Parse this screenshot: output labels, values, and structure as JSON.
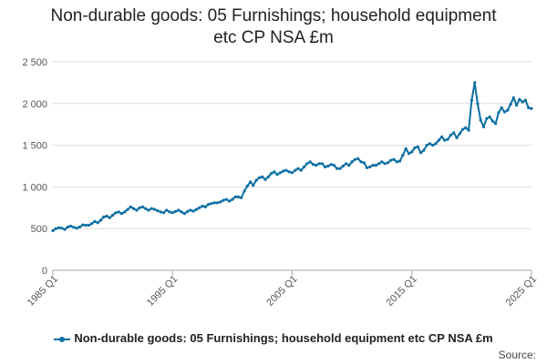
{
  "title": {
    "line1": "Non-durable goods: 05 Furnishings; household equipment",
    "line2": "etc CP NSA £m"
  },
  "legend": {
    "label": "Non-durable goods: 05 Furnishings; household equipment etc CP NSA £m"
  },
  "source": "Source:",
  "colors": {
    "series": "#0b6fa4",
    "grid": "#dddddd",
    "axis": "#aaaaaa"
  },
  "chart_data": {
    "type": "line",
    "title": "Non-durable goods: 05 Furnishings; household equipment etc CP NSA £m",
    "xlabel": "",
    "ylabel": "",
    "ylim": [
      0,
      2500
    ],
    "yticks": [
      0,
      500,
      1000,
      1500,
      2000,
      2500
    ],
    "ytick_labels": [
      "0",
      "500",
      "1 000",
      "1 500",
      "2 000",
      "2 500"
    ],
    "xticks": [
      1985,
      1995,
      2005,
      2015,
      2025
    ],
    "xtick_labels": [
      "1985 Q1",
      "1995 Q1",
      "2005 Q1",
      "2015 Q1",
      "2025 Q1"
    ],
    "xlim": [
      1985,
      2025
    ],
    "grid": true,
    "legend_position": "bottom",
    "series": [
      {
        "name": "Non-durable goods: 05 Furnishings; household equipment etc CP NSA £m",
        "marker": "circle",
        "x": [
          "1985 Q1",
          "1985 Q2",
          "1985 Q3",
          "1985 Q4",
          "1986 Q1",
          "1986 Q2",
          "1986 Q3",
          "1986 Q4",
          "1987 Q1",
          "1987 Q2",
          "1987 Q3",
          "1987 Q4",
          "1988 Q1",
          "1988 Q2",
          "1988 Q3",
          "1988 Q4",
          "1989 Q1",
          "1989 Q2",
          "1989 Q3",
          "1989 Q4",
          "1990 Q1",
          "1990 Q2",
          "1990 Q3",
          "1990 Q4",
          "1991 Q1",
          "1991 Q2",
          "1991 Q3",
          "1991 Q4",
          "1992 Q1",
          "1992 Q2",
          "1992 Q3",
          "1992 Q4",
          "1993 Q1",
          "1993 Q2",
          "1993 Q3",
          "1993 Q4",
          "1994 Q1",
          "1994 Q2",
          "1994 Q3",
          "1994 Q4",
          "1995 Q1",
          "1995 Q2",
          "1995 Q3",
          "1995 Q4",
          "1996 Q1",
          "1996 Q2",
          "1996 Q3",
          "1996 Q4",
          "1997 Q1",
          "1997 Q2",
          "1997 Q3",
          "1997 Q4",
          "1998 Q1",
          "1998 Q2",
          "1998 Q3",
          "1998 Q4",
          "1999 Q1",
          "1999 Q2",
          "1999 Q3",
          "1999 Q4",
          "2000 Q1",
          "2000 Q2",
          "2000 Q3",
          "2000 Q4",
          "2001 Q1",
          "2001 Q2",
          "2001 Q3",
          "2001 Q4",
          "2002 Q1",
          "2002 Q2",
          "2002 Q3",
          "2002 Q4",
          "2003 Q1",
          "2003 Q2",
          "2003 Q3",
          "2003 Q4",
          "2004 Q1",
          "2004 Q2",
          "2004 Q3",
          "2004 Q4",
          "2005 Q1",
          "2005 Q2",
          "2005 Q3",
          "2005 Q4",
          "2006 Q1",
          "2006 Q2",
          "2006 Q3",
          "2006 Q4",
          "2007 Q1",
          "2007 Q2",
          "2007 Q3",
          "2007 Q4",
          "2008 Q1",
          "2008 Q2",
          "2008 Q3",
          "2008 Q4",
          "2009 Q1",
          "2009 Q2",
          "2009 Q3",
          "2009 Q4",
          "2010 Q1",
          "2010 Q2",
          "2010 Q3",
          "2010 Q4",
          "2011 Q1",
          "2011 Q2",
          "2011 Q3",
          "2011 Q4",
          "2012 Q1",
          "2012 Q2",
          "2012 Q3",
          "2012 Q4",
          "2013 Q1",
          "2013 Q2",
          "2013 Q3",
          "2013 Q4",
          "2014 Q1",
          "2014 Q2",
          "2014 Q3",
          "2014 Q4",
          "2015 Q1",
          "2015 Q2",
          "2015 Q3",
          "2015 Q4",
          "2016 Q1",
          "2016 Q2",
          "2016 Q3",
          "2016 Q4",
          "2017 Q1",
          "2017 Q2",
          "2017 Q3",
          "2017 Q4",
          "2018 Q1",
          "2018 Q2",
          "2018 Q3",
          "2018 Q4",
          "2019 Q1",
          "2019 Q2",
          "2019 Q3",
          "2019 Q4",
          "2020 Q1",
          "2020 Q2",
          "2020 Q3",
          "2020 Q4",
          "2021 Q1",
          "2021 Q2",
          "2021 Q3",
          "2021 Q4",
          "2022 Q1",
          "2022 Q2",
          "2022 Q3",
          "2022 Q4",
          "2023 Q1",
          "2023 Q2",
          "2023 Q3",
          "2023 Q4",
          "2024 Q1",
          "2024 Q2",
          "2024 Q3",
          "2024 Q4",
          "2025 Q1"
        ],
        "values": [
          475,
          500,
          510,
          505,
          490,
          520,
          530,
          515,
          505,
          520,
          545,
          540,
          540,
          560,
          585,
          570,
          600,
          640,
          650,
          630,
          660,
          690,
          700,
          680,
          700,
          730,
          760,
          740,
          720,
          750,
          760,
          740,
          720,
          740,
          730,
          715,
          700,
          690,
          720,
          700,
          690,
          705,
          720,
          700,
          680,
          705,
          720,
          710,
          730,
          750,
          770,
          760,
          790,
          800,
          810,
          810,
          820,
          840,
          850,
          830,
          850,
          880,
          880,
          870,
          950,
          1010,
          1060,
          1020,
          1080,
          1110,
          1120,
          1090,
          1120,
          1160,
          1180,
          1150,
          1170,
          1190,
          1200,
          1180,
          1170,
          1200,
          1220,
          1200,
          1240,
          1280,
          1300,
          1270,
          1260,
          1280,
          1280,
          1240,
          1250,
          1270,
          1260,
          1220,
          1220,
          1250,
          1280,
          1260,
          1300,
          1330,
          1340,
          1300,
          1290,
          1230,
          1240,
          1260,
          1260,
          1280,
          1300,
          1280,
          1290,
          1320,
          1330,
          1300,
          1310,
          1380,
          1460,
          1400,
          1420,
          1470,
          1480,
          1410,
          1440,
          1500,
          1520,
          1500,
          1520,
          1560,
          1600,
          1560,
          1570,
          1620,
          1650,
          1590,
          1640,
          1690,
          1710,
          1680,
          2040,
          2250,
          2000,
          1800,
          1720,
          1820,
          1840,
          1790,
          1760,
          1890,
          1950,
          1900,
          1920,
          1990,
          2070,
          1980,
          2050,
          2020,
          2040,
          1950,
          1940
        ]
      }
    ]
  }
}
